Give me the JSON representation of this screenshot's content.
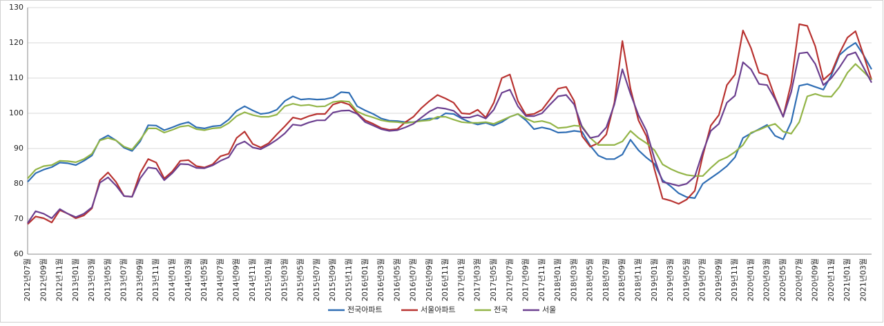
{
  "chart_data": {
    "type": "line",
    "categories": [
      "2012년07월",
      null,
      "2012년09월",
      null,
      "2012년11월",
      null,
      "2013년01월",
      null,
      "2013년03월",
      null,
      "2013년05월",
      null,
      "2013년07월",
      null,
      "2013년09월",
      null,
      "2013년11월",
      null,
      "2014년01월",
      null,
      "2014년03월",
      null,
      "2014년05월",
      null,
      "2014년07월",
      null,
      "2014년09월",
      null,
      "2014년11월",
      null,
      "2015년01월",
      null,
      "2015년03월",
      null,
      "2015년05월",
      null,
      "2015년07월",
      null,
      "2015년09월",
      null,
      "2015년11월",
      null,
      "2016년01월",
      null,
      "2016년03월",
      null,
      "2016년05월",
      null,
      "2016년07월",
      null,
      "2016년09월",
      null,
      "2016년11월",
      null,
      "2017년01월",
      null,
      "2017년03월",
      null,
      "2017년05월",
      null,
      "2017년07월",
      null,
      "2017년09월",
      null,
      "2017년11월",
      null,
      "2018년01월",
      null,
      "2018년03월",
      null,
      "2018년05월",
      null,
      "2018년07월",
      null,
      "2018년09월",
      null,
      "2018년11월",
      null,
      "2019년01월",
      null,
      "2019년03월",
      null,
      "2019년05월",
      null,
      "2019년07월",
      null,
      "2019년09월",
      null,
      "2019년11월",
      null,
      "2020년01월",
      null,
      "2020년03월",
      null,
      "2020년05월",
      null,
      "2020년07월",
      null,
      "2020년09월",
      null,
      "2020년11월",
      null,
      "2021년01월",
      null,
      "2021년03월",
      null
    ],
    "series": [
      {
        "name": "전국아파트",
        "color": "#2e6db4",
        "values": [
          80.5,
          83,
          84,
          84.7,
          86,
          85.8,
          85.3,
          86.5,
          88,
          92.5,
          93.7,
          92.3,
          90.2,
          89.3,
          92,
          96.6,
          96.5,
          95.2,
          96,
          96.9,
          97.5,
          96,
          95.7,
          96.3,
          96.5,
          98.2,
          100.7,
          102,
          100.8,
          99.8,
          100.1,
          101,
          103.5,
          104.8,
          103.9,
          104.1,
          103.9,
          104,
          104.5,
          106,
          105.8,
          102,
          100.8,
          99.8,
          98.5,
          97.9,
          97.8,
          97.5,
          97.5,
          98,
          98.5,
          98.5,
          100,
          99.8,
          98.5,
          97.5,
          96.8,
          97.3,
          96.5,
          97.5,
          99,
          99.8,
          98,
          95.5,
          96,
          95.5,
          94.5,
          94.6,
          95,
          94.7,
          90.8,
          88,
          87,
          87,
          88.3,
          92.5,
          89.5,
          87.4,
          85.6,
          81,
          79.3,
          77.3,
          76.2,
          75.9,
          80,
          81.6,
          83.2,
          85,
          87.5,
          93,
          94.3,
          95.5,
          96.7,
          93.6,
          92.6,
          97.5,
          107.8,
          108.3,
          107.5,
          106.7,
          110.8,
          116.5,
          118.5,
          120,
          116.5,
          112.5
        ]
      },
      {
        "name": "서울아파트",
        "color": "#b83230",
        "values": [
          68.5,
          70.7,
          70.2,
          69,
          72.5,
          71.5,
          70.2,
          71,
          73,
          81,
          83.2,
          80.5,
          76.5,
          76.3,
          83,
          87,
          86,
          81.5,
          83.5,
          86.5,
          86.7,
          85,
          84.6,
          85.5,
          87.8,
          88.5,
          93,
          94.8,
          91.3,
          90.3,
          91.5,
          94,
          96.3,
          98.8,
          98.3,
          99.2,
          99.8,
          99.8,
          102.5,
          103.2,
          102.5,
          100,
          98,
          97,
          95.8,
          95.3,
          95.5,
          97.5,
          99,
          101.5,
          103.5,
          105.2,
          104.2,
          103,
          100,
          99.8,
          101,
          98.8,
          103,
          110,
          111,
          103.5,
          99.5,
          99.8,
          101,
          104,
          107,
          107.5,
          103.5,
          93.5,
          90.5,
          91.5,
          94,
          103,
          120.5,
          107,
          98,
          93.5,
          84,
          75.8,
          75.2,
          74.3,
          75.5,
          78,
          88,
          96.5,
          99.5,
          108,
          111,
          123.5,
          118.5,
          111.5,
          110.8,
          104.5,
          99,
          108.5,
          125.3,
          124.8,
          119,
          109.5,
          111.5,
          117,
          121.5,
          123.3,
          116.5,
          109.5
        ]
      },
      {
        "name": "전국",
        "color": "#92b446",
        "values": [
          81.5,
          84,
          85,
          85.3,
          86.5,
          86.4,
          86.1,
          87,
          88.5,
          92.3,
          93,
          92.3,
          90.5,
          89.7,
          92.5,
          95.7,
          95.7,
          94.5,
          95.3,
          96.2,
          96.5,
          95.5,
          95.2,
          95.7,
          95.9,
          97.2,
          99.2,
          100.3,
          99.5,
          99,
          99,
          99.6,
          102,
          102.7,
          102.2,
          102.4,
          101.9,
          102,
          103.2,
          103.5,
          103.3,
          100.5,
          99.5,
          98.8,
          98,
          97.6,
          97.5,
          97.2,
          97.5,
          97.8,
          98,
          99,
          99,
          98.2,
          97.5,
          97.3,
          97.3,
          97.5,
          97,
          98,
          99,
          99.8,
          98.5,
          97.5,
          97.8,
          97.2,
          95.8,
          96,
          96.5,
          96.3,
          93,
          91,
          91,
          91,
          92,
          95,
          93,
          91.5,
          89.5,
          85.5,
          84.2,
          83.2,
          82.5,
          82.2,
          82.2,
          84.5,
          86.5,
          87.5,
          89,
          91,
          94.5,
          95.3,
          96.3,
          97,
          94.8,
          94.2,
          97.5,
          104.8,
          105.5,
          104.8,
          104.7,
          107.5,
          111.5,
          114,
          111.8,
          109.5
        ]
      },
      {
        "name": "서울",
        "color": "#6b3f8f",
        "values": [
          68.8,
          72.2,
          71.5,
          70.2,
          72.8,
          71.5,
          70.5,
          71.5,
          73.3,
          80.3,
          81.8,
          79.5,
          76.5,
          76.3,
          81.5,
          84.6,
          84.3,
          81,
          83,
          85.6,
          85.5,
          84.5,
          84.4,
          85.2,
          86.5,
          87.5,
          91,
          92,
          90.3,
          89.8,
          91,
          92.5,
          94.3,
          96.8,
          96.5,
          97.4,
          98,
          98,
          100.2,
          100.7,
          100.8,
          99.8,
          97.5,
          96.5,
          95.5,
          95,
          95.2,
          96,
          97,
          98.8,
          100.5,
          101.6,
          101.3,
          100.7,
          98.8,
          98.8,
          99.5,
          98.5,
          101,
          105.8,
          106.7,
          102,
          99.2,
          99.2,
          100,
          102.5,
          104.8,
          105.2,
          102.5,
          96,
          93,
          93.5,
          96,
          102.5,
          112.5,
          105.5,
          99.5,
          95,
          87,
          80.5,
          80,
          79.4,
          80,
          82,
          89,
          95,
          97,
          103,
          105,
          114.5,
          112.5,
          108.3,
          108,
          104,
          99,
          106,
          117,
          117.3,
          114,
          108,
          110,
          113,
          116.5,
          117.3,
          113,
          108.7
        ]
      }
    ],
    "ylim": [
      60,
      130
    ],
    "yticks": [
      60,
      70,
      80,
      90,
      100,
      110,
      120,
      130
    ],
    "grid": true,
    "legend": "bottom"
  }
}
